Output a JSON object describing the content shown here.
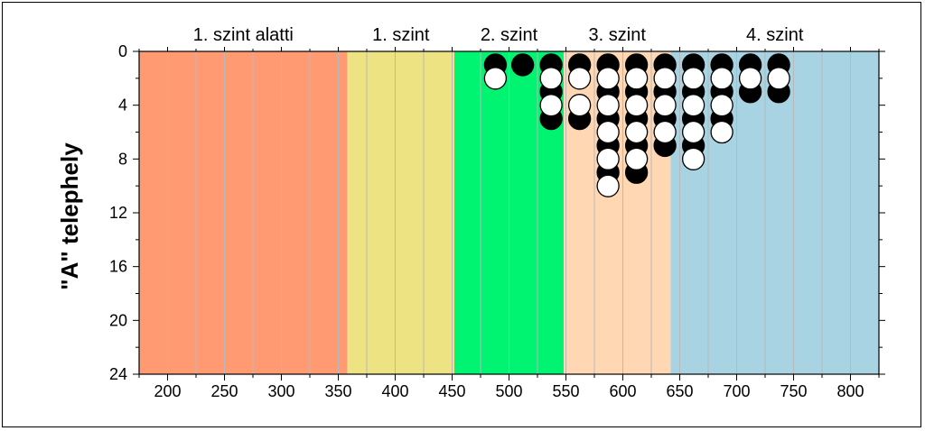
{
  "chart_data": {
    "type": "scatter",
    "title": "",
    "xlabel": "",
    "ylabel": "\"A\" telephely",
    "xlim": [
      175,
      825
    ],
    "ylim": [
      24,
      0
    ],
    "y_inverted": true,
    "xticks": [
      200,
      250,
      300,
      350,
      400,
      450,
      500,
      550,
      600,
      650,
      700,
      750,
      800
    ],
    "yticks": [
      0,
      4,
      8,
      12,
      16,
      20,
      24
    ],
    "grid": "vertical",
    "zones": [
      {
        "label": "1. szint alatti",
        "x0": 175,
        "x1": 358,
        "color": "#ff9a73"
      },
      {
        "label": "1. szint",
        "x0": 358,
        "x1": 452,
        "color": "#ede383"
      },
      {
        "label": "2. szint",
        "x0": 452,
        "x1": 548,
        "color": "#00f472"
      },
      {
        "label": "3. szint",
        "x0": 548,
        "x1": 642,
        "color": "#ffd7b2"
      },
      {
        "label": "4. szint",
        "x0": 642,
        "x1": 825,
        "color": "#a8d3e2"
      }
    ],
    "series": [
      {
        "color": "#000000",
        "points": [
          [
            488,
            1
          ],
          [
            512,
            1
          ],
          [
            537,
            1
          ],
          [
            537,
            3
          ],
          [
            537,
            5
          ],
          [
            562,
            1
          ],
          [
            562,
            5
          ],
          [
            587,
            1
          ],
          [
            587,
            3
          ],
          [
            587,
            5
          ],
          [
            587,
            7
          ],
          [
            587,
            9
          ],
          [
            612,
            1
          ],
          [
            612,
            3
          ],
          [
            612,
            5
          ],
          [
            612,
            7
          ],
          [
            612,
            9
          ],
          [
            637,
            1
          ],
          [
            637,
            3
          ],
          [
            637,
            5
          ],
          [
            637,
            7
          ],
          [
            662,
            1
          ],
          [
            662,
            3
          ],
          [
            662,
            5
          ],
          [
            662,
            7
          ],
          [
            687,
            1
          ],
          [
            687,
            3
          ],
          [
            687,
            5
          ],
          [
            712,
            1
          ],
          [
            712,
            3
          ],
          [
            737,
            1
          ],
          [
            737,
            3
          ]
        ]
      },
      {
        "color": "#ffffff",
        "points": [
          [
            488,
            2
          ],
          [
            537,
            2
          ],
          [
            537,
            4
          ],
          [
            562,
            2
          ],
          [
            562,
            4
          ],
          [
            587,
            2
          ],
          [
            587,
            4
          ],
          [
            587,
            6
          ],
          [
            587,
            8
          ],
          [
            587,
            10
          ],
          [
            612,
            2
          ],
          [
            612,
            4
          ],
          [
            612,
            6
          ],
          [
            612,
            8
          ],
          [
            637,
            2
          ],
          [
            637,
            4
          ],
          [
            637,
            6
          ],
          [
            662,
            2
          ],
          [
            662,
            4
          ],
          [
            662,
            6
          ],
          [
            662,
            8
          ],
          [
            687,
            2
          ],
          [
            687,
            4
          ],
          [
            687,
            6
          ],
          [
            712,
            2
          ],
          [
            737,
            2
          ]
        ]
      }
    ]
  }
}
